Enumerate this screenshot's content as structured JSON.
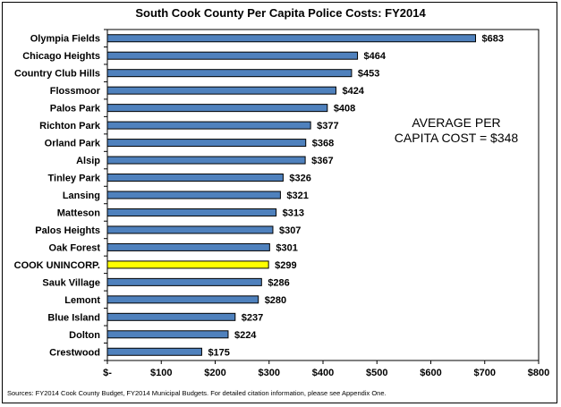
{
  "chart_data": {
    "type": "bar",
    "orientation": "horizontal",
    "title": "South Cook County Per Capita Police Costs: FY2014",
    "categories": [
      "Olympia Fields",
      "Chicago Heights",
      "Country Club Hills",
      "Flossmoor",
      "Palos Park",
      "Richton Park",
      "Orland Park",
      "Alsip",
      "Tinley Park",
      "Lansing",
      "Matteson",
      "Palos Heights",
      "Oak Forest",
      "COOK UNINCORP.",
      "Sauk Village",
      "Lemont",
      "Blue Island",
      "Dolton",
      "Crestwood"
    ],
    "values": [
      683,
      464,
      453,
      424,
      408,
      377,
      368,
      367,
      326,
      321,
      313,
      307,
      301,
      299,
      286,
      280,
      237,
      224,
      175
    ],
    "value_labels": [
      "$683",
      "$464",
      "$453",
      "$424",
      "$408",
      "$377",
      "$368",
      "$367",
      "$326",
      "$321",
      "$313",
      "$307",
      "$301",
      "$299",
      "$286",
      "$280",
      "$237",
      "$224",
      "$175"
    ],
    "highlight_category": "COOK UNINCORP.",
    "xlim": [
      0,
      800
    ],
    "xticks": [
      0,
      100,
      200,
      300,
      400,
      500,
      600,
      700,
      800
    ],
    "xtick_labels": [
      "$-",
      "$100",
      "$200",
      "$300",
      "$400",
      "$500",
      "$600",
      "$700",
      "$800"
    ],
    "grid": false,
    "bar_color": "#4f81bd",
    "highlight_color": "#ffff00",
    "annotation": {
      "line1": "AVERAGE PER",
      "line2": "CAPITA COST = $348"
    },
    "source": "Sources: FY2014 Cook County Budget, FY2014 Municipal Budgets. For detailed citation information, please see Appendix One."
  }
}
